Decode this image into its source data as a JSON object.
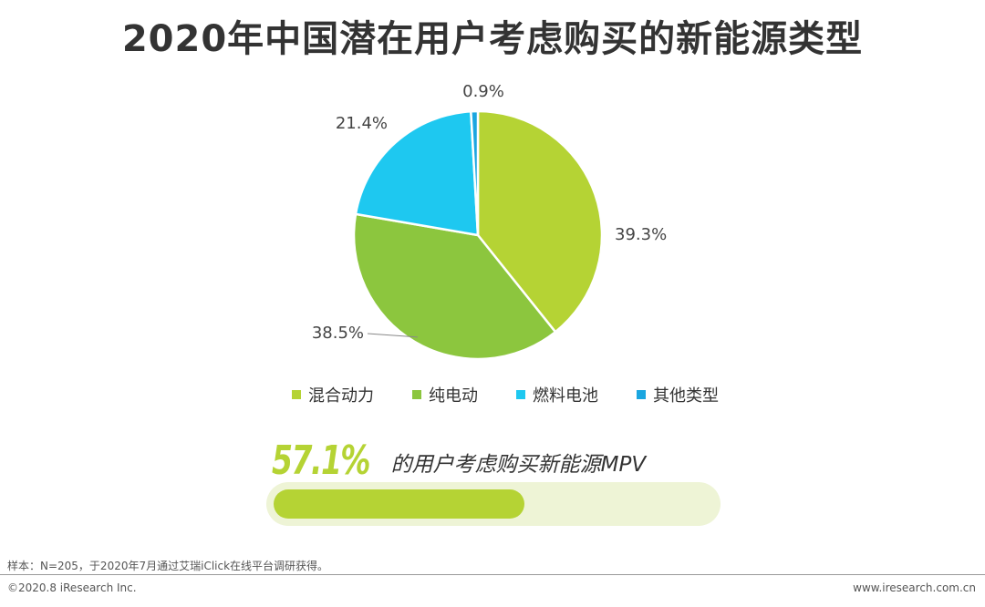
{
  "header": {
    "title": "2020年中国潜在用户考虑购买的新能源类型"
  },
  "chart_data": {
    "type": "pie",
    "categories": [
      "混合动力",
      "纯电动",
      "燃料电池",
      "其他类型"
    ],
    "values": [
      39.3,
      38.5,
      21.4,
      0.9
    ],
    "value_labels": [
      "39.3%",
      "38.5%",
      "21.4%",
      "0.9%"
    ],
    "colors": [
      "#b5d334",
      "#8cc63e",
      "#1ec8f0",
      "#1ba6e0"
    ],
    "unit": "%",
    "legend_position": "bottom"
  },
  "stat": {
    "value_text": "57.1%",
    "value": 57.1,
    "description": "的用户考虑购买新能源MPV"
  },
  "footer": {
    "note": "样本：N=205，于2020年7月通过艾瑞iClick在线平台调研获得。",
    "copyright": "©2020.8 iResearch Inc.",
    "website": "www.iresearch.com.cn"
  }
}
